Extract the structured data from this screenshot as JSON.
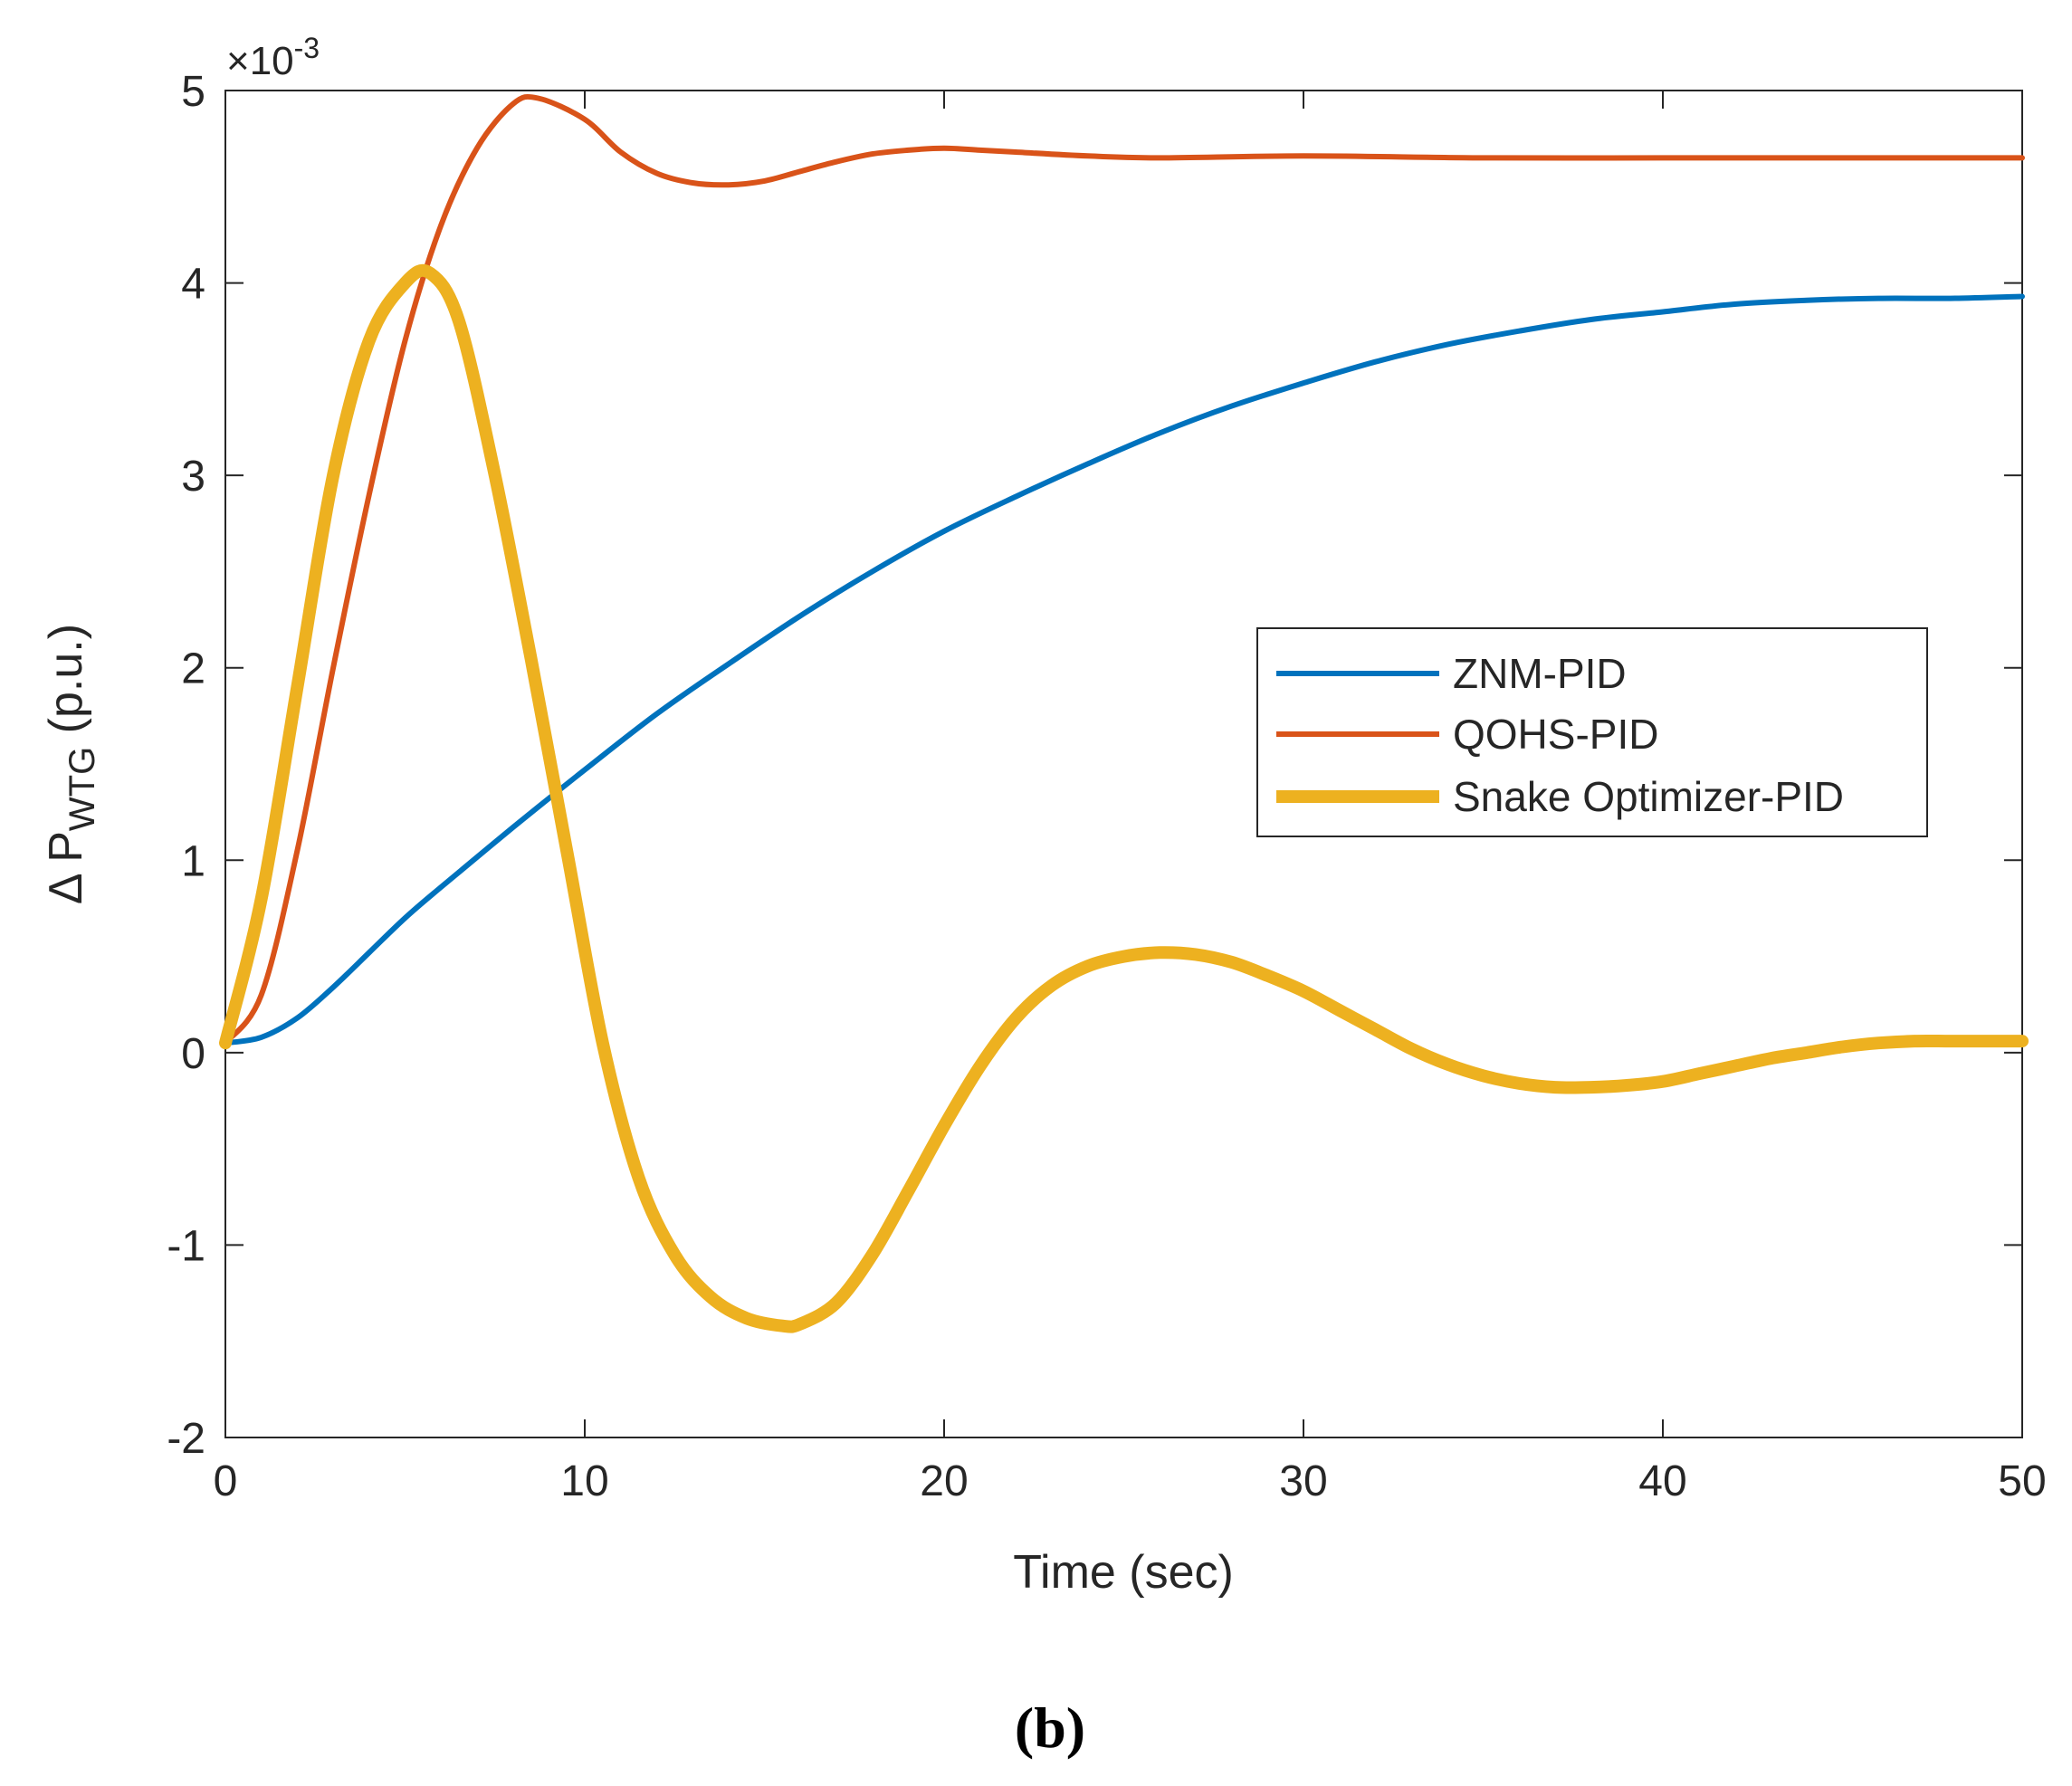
{
  "chart_data": {
    "type": "line",
    "title": "",
    "xlabel": "Time (sec)",
    "ylabel_prefix": "Δ P",
    "ylabel_subscript": "WTG",
    "ylabel_suffix": " (p.u.)",
    "exponent_label_base": "×10",
    "exponent_label_power": "-3",
    "xlim": [
      0,
      50
    ],
    "ylim": [
      -2,
      5
    ],
    "xticks": [
      0,
      10,
      20,
      30,
      40,
      50
    ],
    "yticks": [
      -2,
      -1,
      0,
      1,
      2,
      3,
      4,
      5
    ],
    "xtick_labels": [
      "0",
      "10",
      "20",
      "30",
      "40",
      "50"
    ],
    "ytick_labels": [
      "-2",
      "-1",
      "0",
      "1",
      "2",
      "3",
      "4",
      "5"
    ],
    "grid": false,
    "legend_position": "center-right",
    "series": [
      {
        "name": "ZNM-PID",
        "color": "#0072BD",
        "line_weight": "normal",
        "x": [
          0,
          1,
          2,
          3,
          4,
          5,
          6,
          8,
          10,
          12,
          14,
          16,
          18,
          20,
          22,
          24,
          26,
          28,
          30,
          32,
          34,
          36,
          38,
          40,
          42,
          44,
          46,
          48,
          50
        ],
        "y": [
          0.05,
          0.08,
          0.18,
          0.34,
          0.52,
          0.7,
          0.86,
          1.17,
          1.47,
          1.76,
          2.02,
          2.27,
          2.5,
          2.71,
          2.89,
          3.06,
          3.22,
          3.36,
          3.48,
          3.59,
          3.68,
          3.75,
          3.81,
          3.85,
          3.89,
          3.91,
          3.92,
          3.92,
          3.93
        ]
      },
      {
        "name": "QOHS-PID",
        "color": "#D95319",
        "line_weight": "normal",
        "x": [
          0,
          1,
          2,
          3,
          4,
          5,
          6,
          7,
          8,
          8.7,
          10,
          11,
          12,
          13,
          14,
          15,
          16,
          17,
          18,
          19,
          20,
          21,
          22,
          24,
          26,
          30,
          35,
          40,
          45,
          50
        ],
        "y": [
          0.05,
          0.3,
          1.05,
          2.0,
          2.9,
          3.7,
          4.3,
          4.7,
          4.93,
          4.96,
          4.85,
          4.68,
          4.57,
          4.52,
          4.51,
          4.53,
          4.58,
          4.63,
          4.67,
          4.69,
          4.7,
          4.69,
          4.68,
          4.66,
          4.65,
          4.66,
          4.65,
          4.65,
          4.65,
          4.65
        ]
      },
      {
        "name": "Snake Optimizer-PID",
        "color": "#EDB120",
        "line_weight": "thick",
        "x": [
          0,
          1,
          2,
          3,
          4,
          5,
          5.7,
          6.5,
          7.5,
          8.5,
          9.5,
          10.5,
          11.5,
          12.5,
          13.5,
          14.5,
          15.5,
          16,
          17,
          18,
          19,
          20,
          21,
          22,
          23,
          24,
          25,
          26,
          27,
          28,
          29,
          30,
          31,
          32,
          33,
          34,
          35,
          36,
          37,
          38,
          39,
          40,
          41,
          42,
          43,
          44,
          45,
          46,
          47,
          48,
          49,
          50
        ],
        "y": [
          0.05,
          0.8,
          1.9,
          3.0,
          3.7,
          4.0,
          4.05,
          3.8,
          3.0,
          2.05,
          1.05,
          0.05,
          -0.65,
          -1.05,
          -1.27,
          -1.38,
          -1.42,
          -1.41,
          -1.3,
          -1.05,
          -0.72,
          -0.38,
          -0.07,
          0.18,
          0.35,
          0.45,
          0.5,
          0.52,
          0.51,
          0.47,
          0.4,
          0.32,
          0.22,
          0.12,
          0.02,
          -0.06,
          -0.12,
          -0.16,
          -0.18,
          -0.18,
          -0.17,
          -0.15,
          -0.11,
          -0.07,
          -0.03,
          0.0,
          0.03,
          0.05,
          0.06,
          0.06,
          0.06,
          0.06
        ]
      }
    ]
  },
  "panel_label": "(b)"
}
